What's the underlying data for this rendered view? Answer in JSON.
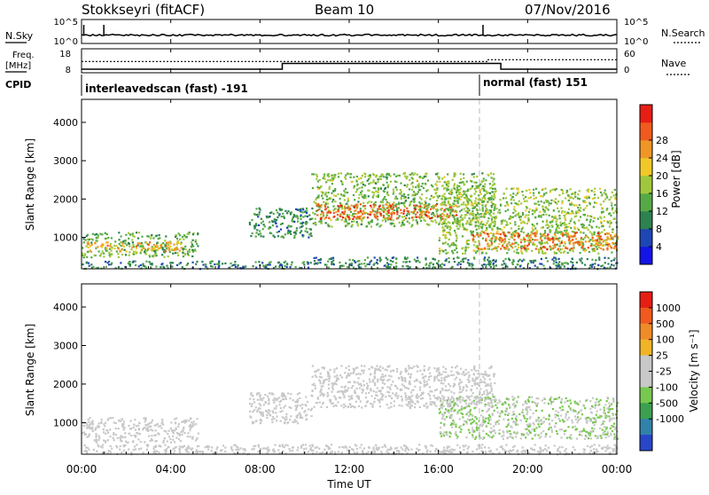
{
  "header": {
    "station": "Stokkseyri (fitACF)",
    "beam": "Beam 10",
    "date": "07/Nov/2016"
  },
  "nsky_panel": {
    "left_label": "N.Sky",
    "right_label": "N.Search",
    "left_ticks": [
      "10^5",
      "10^0"
    ],
    "right_ticks": [
      "10^5",
      "10^0"
    ]
  },
  "freq_panel": {
    "left_label_1": "Freq.",
    "left_label_2": "[MHz]",
    "right_label": "Nave",
    "left_ticks": [
      "18",
      "8"
    ],
    "right_ticks": [
      "60",
      "0"
    ]
  },
  "cpid_panel": {
    "label": "CPID",
    "modes": [
      {
        "text": "interleavedscan (fast) -191",
        "start_hour": 0
      },
      {
        "text": "normal (fast) 151",
        "start_hour": 18
      }
    ]
  },
  "colors": {
    "power": [
      "#1414e6",
      "#1e46b4",
      "#2d8250",
      "#55aa46",
      "#a0c83c",
      "#f0c828",
      "#f09628",
      "#f05a1e",
      "#e61e14"
    ],
    "velocity": [
      "#2846c8",
      "#3282aa",
      "#3ca050",
      "#78c850",
      "#c8c8c8",
      "#c8c8c8",
      "#f0b428",
      "#f08c28",
      "#f05a1e",
      "#e61e14"
    ]
  },
  "chart_data": [
    {
      "type": "heatmap",
      "name": "power",
      "xlabel": "",
      "ylabel": "Slant Range [km]",
      "xlim": [
        0,
        24
      ],
      "ylim": [
        180,
        4600
      ],
      "yticks": [
        1000,
        2000,
        3000,
        4000
      ],
      "colorbar": {
        "label": "Power [dB]",
        "ticks": [
          4,
          8,
          12,
          16,
          20,
          24,
          28
        ],
        "range": [
          0,
          32
        ]
      },
      "regions": [
        {
          "t0": 0.0,
          "t1": 5.2,
          "r0": 500,
          "r1": 1150,
          "value": 13
        },
        {
          "t0": 0.2,
          "t1": 4.5,
          "r0": 650,
          "r1": 900,
          "value": 22
        },
        {
          "t0": 0.0,
          "t1": 10.3,
          "r0": 200,
          "r1": 400,
          "value": 9
        },
        {
          "t0": 7.5,
          "t1": 10.3,
          "r0": 1000,
          "r1": 1800,
          "value": 10
        },
        {
          "t0": 10.3,
          "t1": 18.5,
          "r0": 1300,
          "r1": 2700,
          "value": 14
        },
        {
          "t0": 10.5,
          "t1": 16.8,
          "r0": 1500,
          "r1": 1900,
          "value": 26
        },
        {
          "t0": 16.0,
          "t1": 24.0,
          "r0": 600,
          "r1": 2300,
          "value": 15
        },
        {
          "t0": 17.5,
          "t1": 24.0,
          "r0": 700,
          "r1": 1150,
          "value": 25
        },
        {
          "t0": 10.3,
          "t1": 24.0,
          "r0": 200,
          "r1": 500,
          "value": 9
        }
      ]
    },
    {
      "type": "heatmap",
      "name": "velocity",
      "xlabel": "Time UT",
      "ylabel": "Slant Range [km]",
      "xlim": [
        0,
        24
      ],
      "ylim": [
        180,
        4600
      ],
      "yticks": [
        1000,
        2000,
        3000,
        4000
      ],
      "xticks": [
        "00:00",
        "04:00",
        "08:00",
        "12:00",
        "16:00",
        "20:00",
        "00:00"
      ],
      "xtick_hours": [
        0,
        4,
        8,
        12,
        16,
        20,
        24
      ],
      "colorbar": {
        "label": "Velocity [m s⁻¹]",
        "ticks": [
          "1000",
          "500",
          "100",
          "25",
          "-25",
          "-100",
          "-500",
          "-1000"
        ],
        "range": [
          -1250,
          1250
        ]
      },
      "regions": [
        {
          "t0": 0.0,
          "t1": 5.2,
          "r0": 500,
          "r1": 1150,
          "value": 0
        },
        {
          "t0": 7.5,
          "t1": 10.3,
          "r0": 1000,
          "r1": 1800,
          "value": 0
        },
        {
          "t0": 10.3,
          "t1": 18.5,
          "r0": 1400,
          "r1": 2500,
          "value": 0
        },
        {
          "t0": 16.0,
          "t1": 24.0,
          "r0": 600,
          "r1": 1700,
          "value": -250
        },
        {
          "t0": 0.0,
          "t1": 24.0,
          "r0": 200,
          "r1": 450,
          "value": -60
        }
      ]
    }
  ],
  "nsky_data": {
    "base": 0.35,
    "spikes_hours": [
      0.1,
      1.0,
      18.0
    ]
  },
  "freq_data": {
    "freq_steps": [
      {
        "t0": 0,
        "t1": 9.0,
        "v": 9.2
      },
      {
        "t0": 9.0,
        "t1": 18.8,
        "v": 11.8
      },
      {
        "t0": 18.8,
        "t1": 24,
        "v": 9.2
      }
    ],
    "nave_steps": [
      {
        "t0": 0,
        "t1": 18.2,
        "v": 28
      },
      {
        "t0": 18.2,
        "t1": 24,
        "v": 33
      }
    ]
  }
}
